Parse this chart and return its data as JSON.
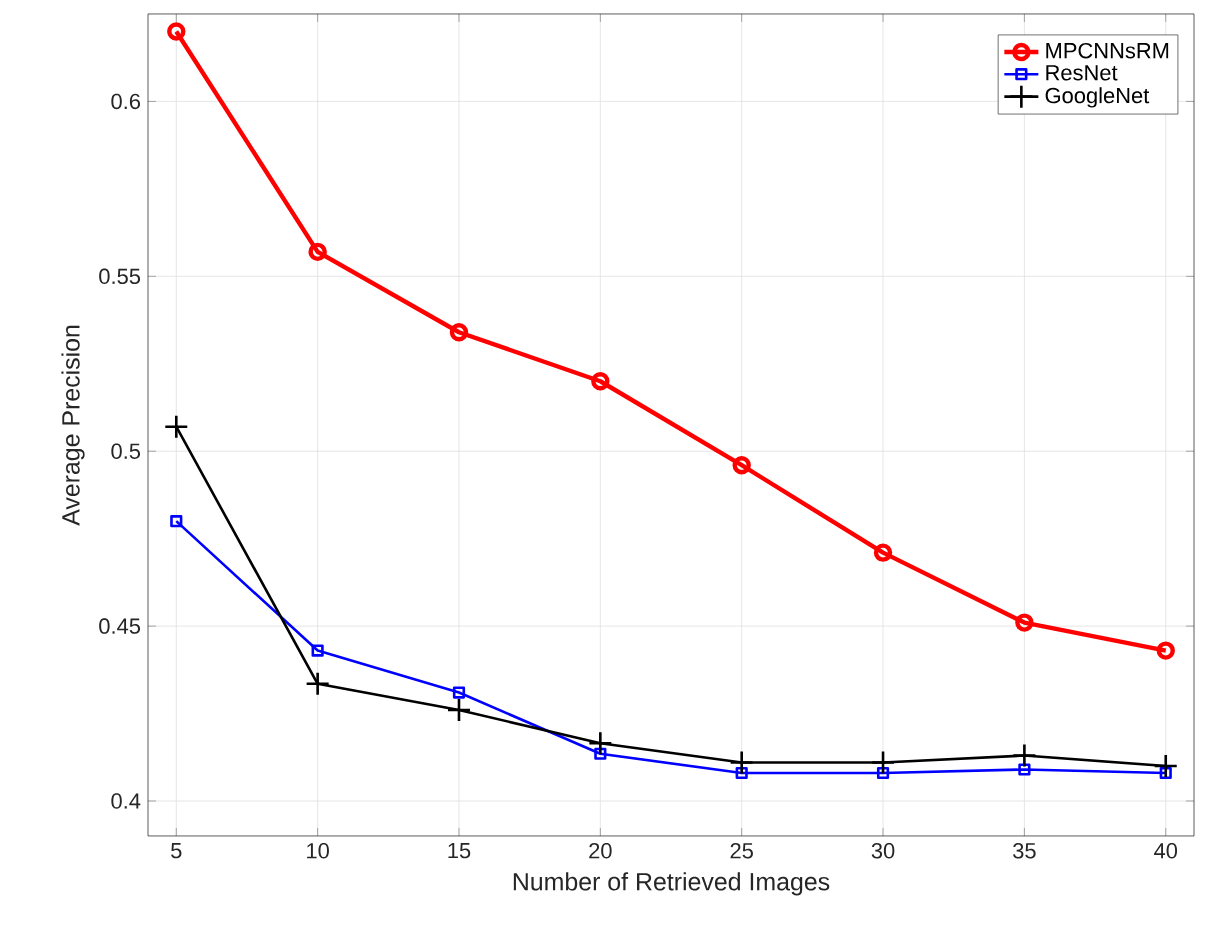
{
  "chart_data": {
    "type": "line",
    "xlabel": "Number of Retrieved Images",
    "ylabel": "Average Precision",
    "x": [
      5,
      10,
      15,
      20,
      25,
      30,
      35,
      40
    ],
    "series": [
      {
        "name": "MPCNNsRM",
        "color": "#ff0000",
        "marker": "circle",
        "values": [
          0.62,
          0.557,
          0.534,
          0.52,
          0.496,
          0.471,
          0.451,
          0.443
        ]
      },
      {
        "name": "ResNet",
        "color": "#0000ff",
        "marker": "square",
        "values": [
          0.48,
          0.443,
          0.431,
          0.4135,
          0.408,
          0.408,
          0.409,
          0.408
        ]
      },
      {
        "name": "GoogleNet",
        "color": "#000000",
        "marker": "cross",
        "values": [
          0.507,
          0.4335,
          0.426,
          0.4165,
          0.411,
          0.411,
          0.413,
          0.41
        ]
      }
    ],
    "xlim": [
      4,
      41
    ],
    "ylim": [
      0.39,
      0.625
    ],
    "xticks": [
      5,
      10,
      15,
      20,
      25,
      30,
      35,
      40
    ],
    "yticks": [
      0.4,
      0.45,
      0.5,
      0.55,
      0.6
    ],
    "grid": true,
    "legend": "top right",
    "line_style": "solid"
  }
}
